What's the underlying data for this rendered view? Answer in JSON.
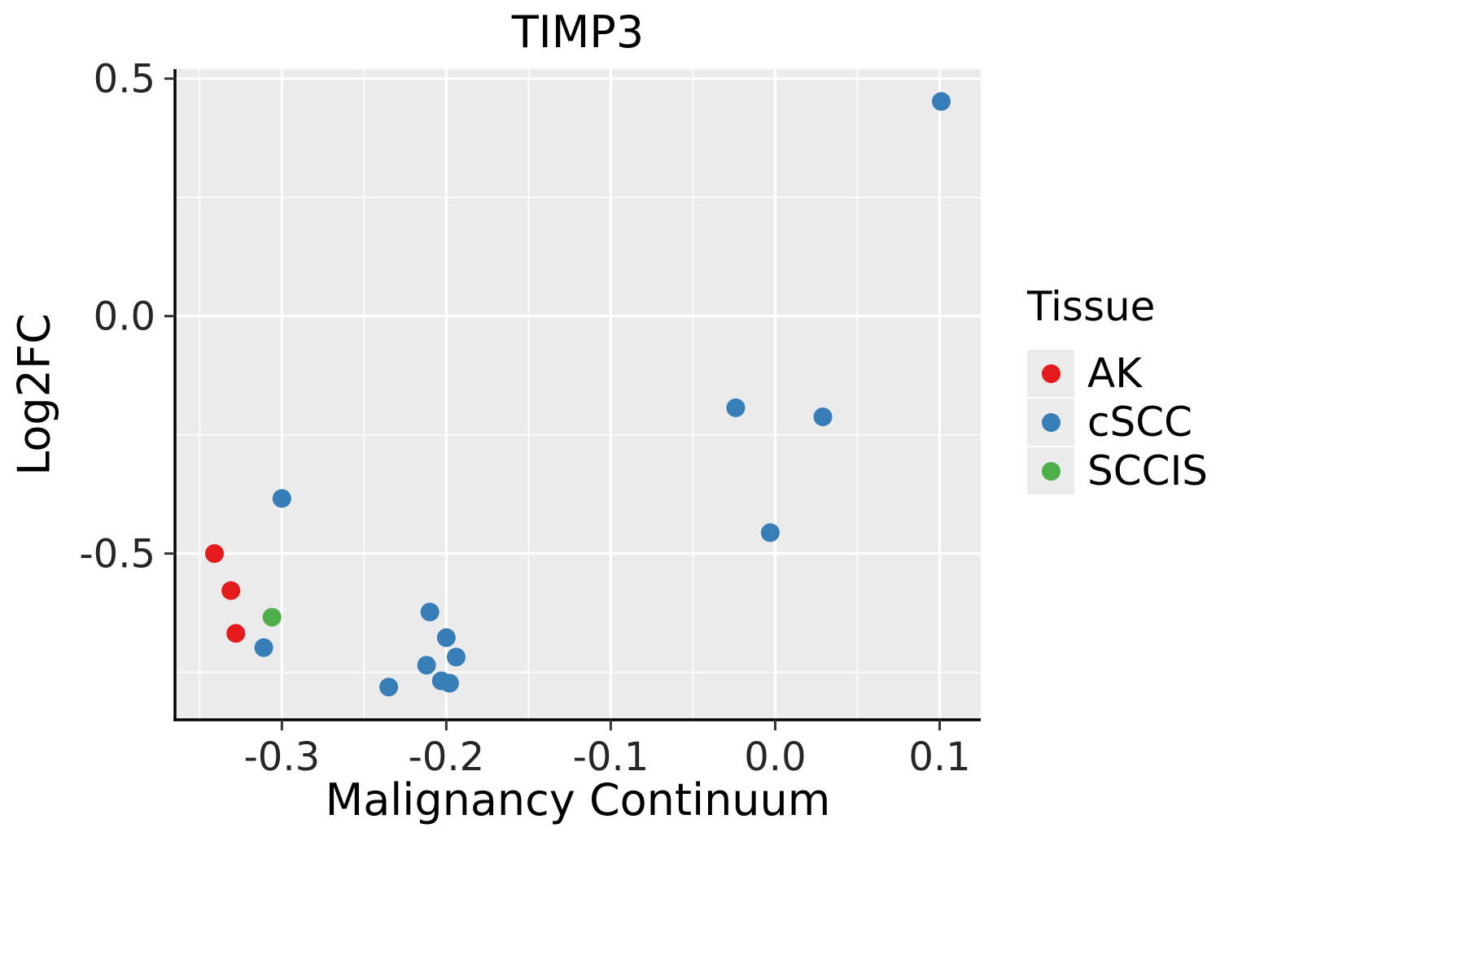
{
  "chart_data": {
    "type": "scatter",
    "title": "TIMP3",
    "xlabel": "Malignancy Continuum",
    "ylabel": "Log2FC",
    "xlim": [
      -0.365,
      0.125
    ],
    "ylim": [
      -0.85,
      0.52
    ],
    "x_ticks": [
      -0.3,
      -0.2,
      -0.1,
      0.0,
      0.1
    ],
    "x_tick_labels": [
      "-0.3",
      "-0.2",
      "-0.1",
      "0.0",
      "0.1"
    ],
    "y_ticks": [
      0.5,
      0.0,
      -0.5
    ],
    "y_tick_labels": [
      "0.5",
      "0.0",
      "-0.5"
    ],
    "x_minor_ticks": [
      -0.35,
      -0.25,
      -0.15,
      -0.05,
      0.05
    ],
    "y_minor_ticks": [
      0.25,
      -0.25,
      -0.75
    ],
    "grid": true,
    "panel_bg": "#EBEBEB",
    "grid_color": "#FFFFFF",
    "axis_color": "#000000",
    "tick_label_color": "#262626",
    "legend_title": "Tissue",
    "legend_position": "right",
    "point_radius": 11.5,
    "series": [
      {
        "name": "AK",
        "color": "#E41A1C",
        "points": [
          [
            -0.341,
            -0.5
          ],
          [
            -0.331,
            -0.578
          ],
          [
            -0.328,
            -0.668
          ]
        ]
      },
      {
        "name": "cSCC",
        "color": "#377EB8",
        "points": [
          [
            0.101,
            0.452
          ],
          [
            -0.024,
            -0.193
          ],
          [
            0.029,
            -0.212
          ],
          [
            -0.003,
            -0.456
          ],
          [
            -0.3,
            -0.384
          ],
          [
            -0.311,
            -0.698
          ],
          [
            -0.21,
            -0.623
          ],
          [
            -0.2,
            -0.677
          ],
          [
            -0.194,
            -0.718
          ],
          [
            -0.212,
            -0.735
          ],
          [
            -0.203,
            -0.768
          ],
          [
            -0.198,
            -0.773
          ],
          [
            -0.235,
            -0.781
          ]
        ]
      },
      {
        "name": "SCCIS",
        "color": "#4DAF4A",
        "points": [
          [
            -0.306,
            -0.634
          ]
        ]
      }
    ]
  }
}
